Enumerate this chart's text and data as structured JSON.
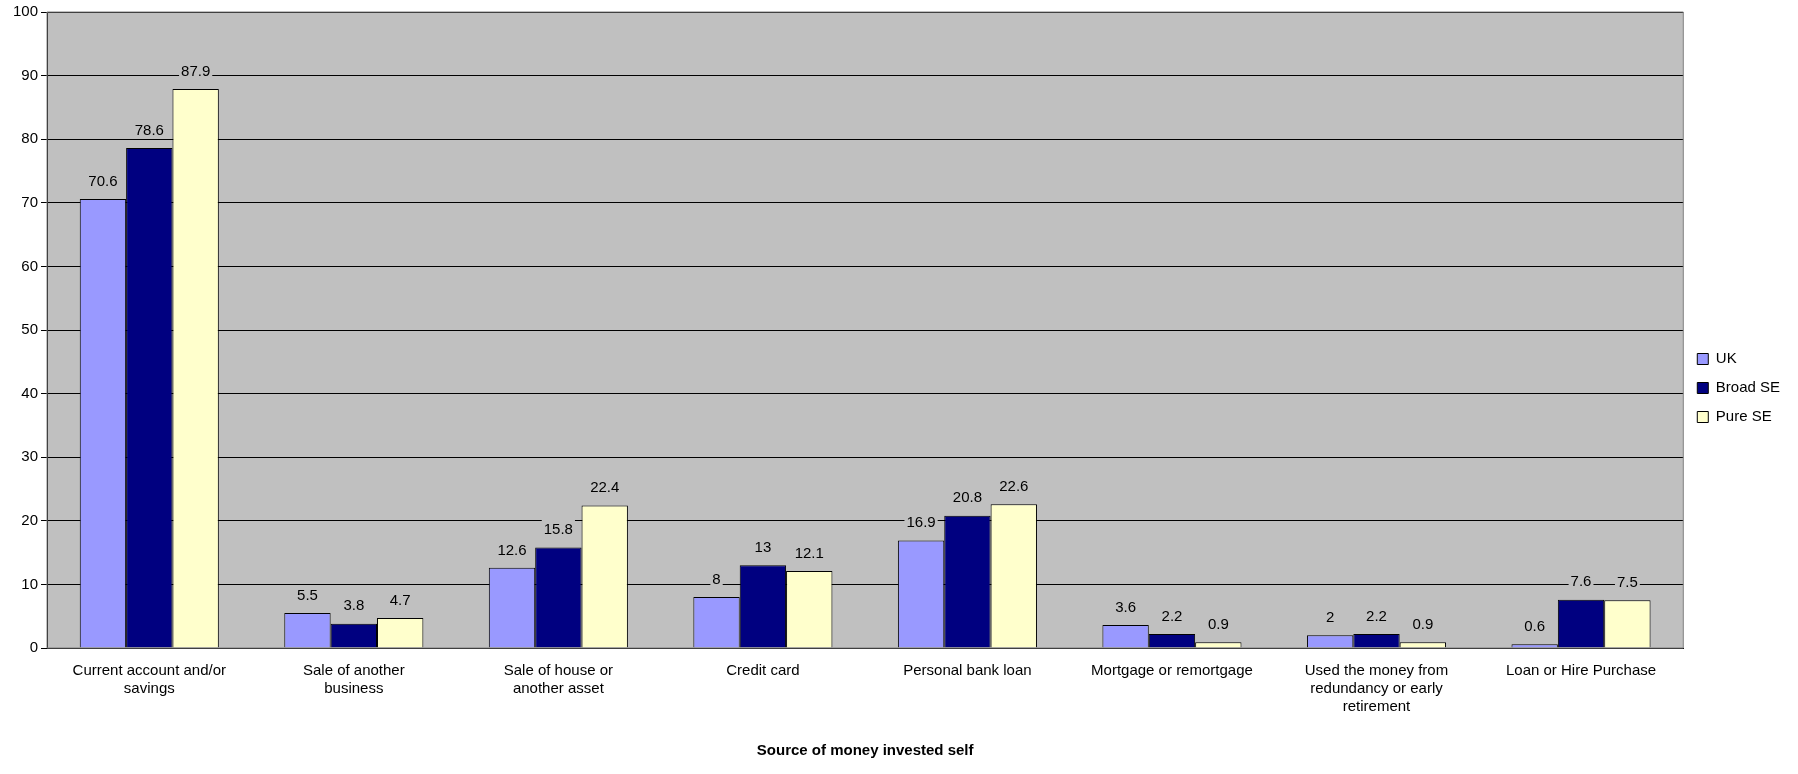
{
  "chart_data": {
    "type": "bar",
    "xlabel": "Source of money invested self",
    "categories": [
      "Current account and/or savings",
      "Sale of another business",
      "Sale of house or another asset",
      "Credit card",
      "Personal bank loan",
      "Mortgage or remortgage",
      "Used the money from redundancy or early retirement",
      "Loan or Hire Purchase"
    ],
    "series": [
      {
        "name": "UK",
        "color": "#9999ff",
        "values": [
          70.6,
          5.5,
          12.6,
          8,
          16.9,
          3.6,
          2,
          0.6
        ]
      },
      {
        "name": "Broad SE",
        "color": "#000080",
        "values": [
          78.6,
          3.8,
          15.8,
          13,
          20.8,
          2.2,
          2.2,
          7.6
        ]
      },
      {
        "name": "Pure SE",
        "color": "#ffffcc",
        "values": [
          87.9,
          4.7,
          22.4,
          12.1,
          22.6,
          0.9,
          0.9,
          7.5
        ]
      }
    ],
    "ylim": [
      0,
      100
    ],
    "yticks": [
      0,
      10,
      20,
      30,
      40,
      50,
      60,
      70,
      80,
      90,
      100
    ],
    "grid": "y",
    "legend": "right",
    "data_labels": true
  }
}
